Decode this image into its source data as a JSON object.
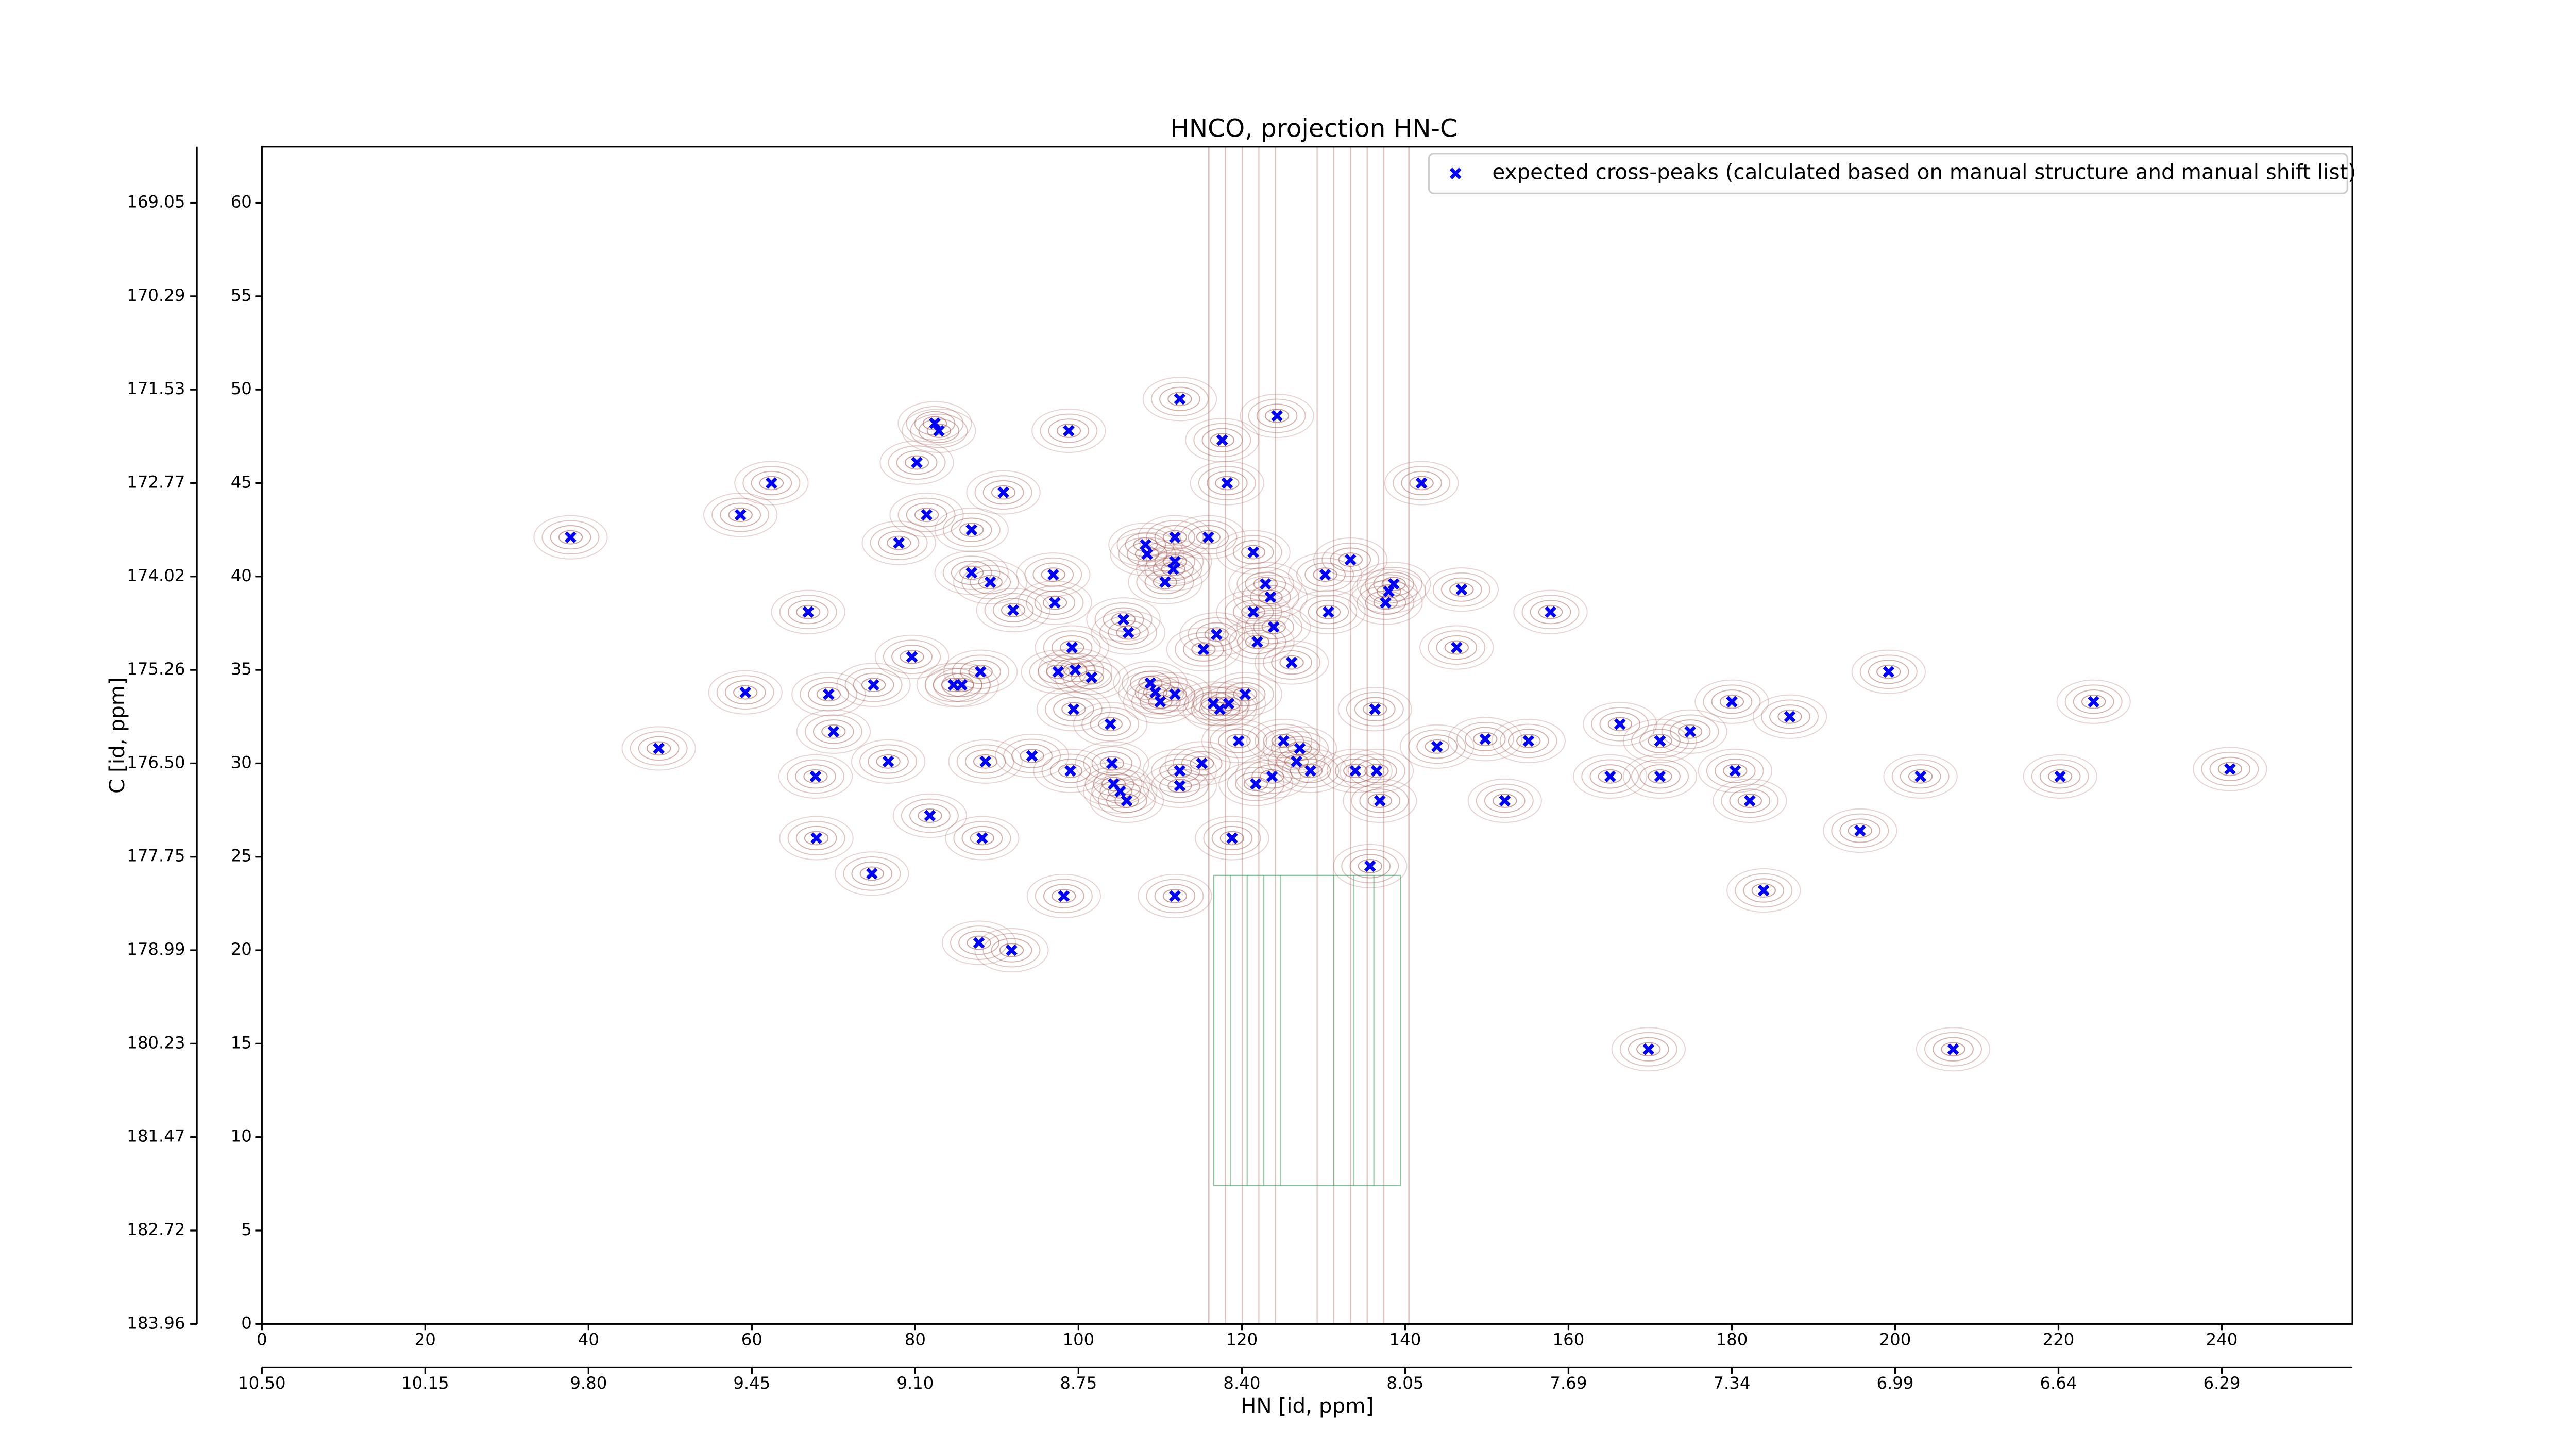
{
  "chart_data": {
    "type": "scatter",
    "title": "HNCO, projection HN-C",
    "xlabel": "HN [id, ppm]",
    "ylabel": "C [id, ppm]",
    "legend": "upper right",
    "xlim": [
      0,
      256
    ],
    "ylim": [
      0,
      63
    ],
    "xticks": [
      0,
      20,
      40,
      60,
      80,
      100,
      120,
      140,
      160,
      180,
      200,
      220,
      240
    ],
    "yticks": [
      0,
      5,
      10,
      15,
      20,
      25,
      30,
      35,
      40,
      45,
      50,
      55,
      60
    ],
    "x2ticks": [
      {
        "value": 0,
        "label": "10.50"
      },
      {
        "value": 20,
        "label": "10.15"
      },
      {
        "value": 40,
        "label": "9.80"
      },
      {
        "value": 60,
        "label": "9.45"
      },
      {
        "value": 80,
        "label": "9.10"
      },
      {
        "value": 100,
        "label": "8.75"
      },
      {
        "value": 120,
        "label": "8.40"
      },
      {
        "value": 140,
        "label": "8.05"
      },
      {
        "value": 160,
        "label": "7.69"
      },
      {
        "value": 180,
        "label": "7.34"
      },
      {
        "value": 200,
        "label": "6.99"
      },
      {
        "value": 220,
        "label": "6.64"
      },
      {
        "value": 240,
        "label": "6.29"
      }
    ],
    "y2ticks": [
      {
        "value": 60,
        "label": "169.05"
      },
      {
        "value": 55,
        "label": "170.29"
      },
      {
        "value": 50,
        "label": "171.53"
      },
      {
        "value": 45,
        "label": "172.77"
      },
      {
        "value": 40,
        "label": "174.02"
      },
      {
        "value": 35,
        "label": "175.26"
      },
      {
        "value": 30,
        "label": "176.50"
      },
      {
        "value": 25,
        "label": "177.75"
      },
      {
        "value": 20,
        "label": "178.99"
      },
      {
        "value": 15,
        "label": "180.23"
      },
      {
        "value": 10,
        "label": "181.47"
      },
      {
        "value": 5,
        "label": "182.72"
      },
      {
        "value": 0,
        "label": "183.96"
      }
    ],
    "series": [
      {
        "name": "expected cross-peaks (calculated based on manual structure and manual shift list)",
        "color": "#0000ff",
        "x": [
          37.8,
          48.6,
          58.6,
          62.4,
          59.2,
          66.9,
          67.8,
          69.4,
          70.0,
          67.9,
          74.7,
          74.9,
          76.7,
          78.0,
          79.6,
          80.2,
          81.4,
          81.8,
          82.4,
          82.9,
          84.7,
          85.7,
          86.9,
          86.9,
          87.8,
          88.0,
          88.2,
          88.6,
          89.2,
          90.8,
          91.8,
          92.0,
          94.3,
          96.9,
          97.1,
          97.5,
          98.8,
          99.2,
          99.6,
          99.4,
          99.0,
          98.2,
          101.6,
          103.9,
          104.1,
          104.3,
          105.1,
          105.9,
          105.5,
          106.1,
          108.2,
          108.4,
          108.8,
          109.4,
          110.0,
          110.6,
          111.6,
          111.8,
          111.8,
          111.8,
          111.8,
          112.4,
          112.4,
          112.4,
          115.1,
          115.3,
          115.9,
          116.5,
          116.9,
          117.3,
          117.6,
          118.2,
          118.4,
          118.8,
          119.6,
          120.4,
          121.4,
          121.4,
          121.7,
          121.9,
          122.9,
          123.5,
          123.7,
          124.3,
          123.9,
          125.1,
          126.1,
          126.7,
          127.1,
          128.4,
          130.2,
          130.6,
          133.3,
          133.9,
          135.7,
          136.5,
          136.9,
          136.3,
          137.6,
          138.0,
          138.6,
          142.0,
          146.3,
          146.9,
          143.9,
          149.8,
          152.2,
          155.1,
          157.8,
          165.1,
          166.3,
          169.8,
          171.2,
          171.2,
          174.9,
          180.0,
          180.4,
          182.2,
          183.9,
          187.1,
          195.7,
          199.2,
          203.1,
          207.1,
          220.2,
          224.3,
          241.0
        ],
        "values": [
          42.1,
          30.8,
          43.3,
          45.0,
          33.8,
          38.1,
          29.3,
          33.7,
          31.7,
          26.0,
          24.1,
          34.2,
          30.1,
          41.8,
          35.7,
          46.1,
          43.3,
          27.2,
          48.2,
          47.8,
          34.2,
          34.2,
          42.5,
          40.2,
          20.4,
          34.9,
          26.0,
          30.1,
          39.7,
          44.5,
          20.0,
          38.2,
          30.4,
          40.1,
          38.6,
          34.9,
          47.8,
          36.2,
          35.0,
          32.9,
          29.6,
          22.9,
          34.6,
          32.1,
          30.0,
          28.9,
          28.5,
          28.0,
          37.7,
          37.0,
          41.7,
          41.2,
          34.3,
          33.8,
          33.3,
          39.7,
          40.4,
          40.8,
          33.7,
          42.1,
          22.9,
          49.5,
          29.6,
          28.8,
          30.0,
          36.1,
          42.1,
          33.2,
          36.9,
          32.9,
          47.3,
          45.0,
          33.2,
          26.0,
          31.2,
          33.7,
          41.3,
          38.1,
          28.9,
          36.5,
          39.6,
          38.9,
          29.3,
          48.6,
          37.3,
          31.2,
          35.4,
          30.1,
          30.8,
          29.6,
          40.1,
          38.1,
          40.9,
          29.6,
          24.5,
          29.6,
          28.0,
          32.9,
          38.6,
          39.2,
          39.6,
          45.0,
          36.2,
          39.3,
          30.9,
          31.3,
          28.0,
          31.2,
          38.1,
          29.3,
          32.1,
          14.7,
          31.2,
          29.3,
          31.7,
          33.3,
          29.6,
          28.0,
          23.2,
          32.5,
          26.4,
          34.9,
          29.3,
          14.7,
          29.3,
          33.3,
          29.7
        ]
      }
    ]
  }
}
